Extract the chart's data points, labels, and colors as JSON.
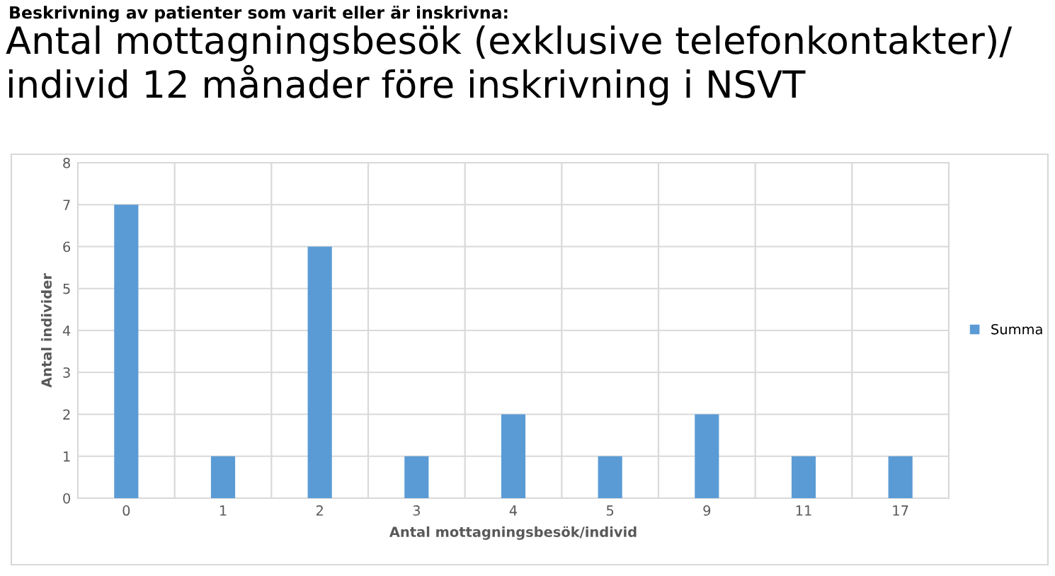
{
  "chart_data": {
    "type": "bar",
    "subtitle": "Beskrivning av patienter som varit eller är inskrivna:",
    "title": "Antal mottagningsbesök (exklusive telefonkontakter)/\nindivid 12 månader före inskrivning i NSVT",
    "xlabel": "Antal mottagningsbesök/individ",
    "ylabel": "Antal individer",
    "categories": [
      "0",
      "1",
      "2",
      "3",
      "4",
      "5",
      "9",
      "11",
      "17"
    ],
    "series": [
      {
        "name": "Summa",
        "color": "#5b9bd5",
        "values": [
          7,
          1,
          6,
          1,
          2,
          1,
          2,
          1,
          1
        ]
      }
    ],
    "ylim": [
      0,
      8
    ],
    "yticks": [
      0,
      1,
      2,
      3,
      4,
      5,
      6,
      7,
      8
    ],
    "grid": true,
    "legend": "right"
  }
}
